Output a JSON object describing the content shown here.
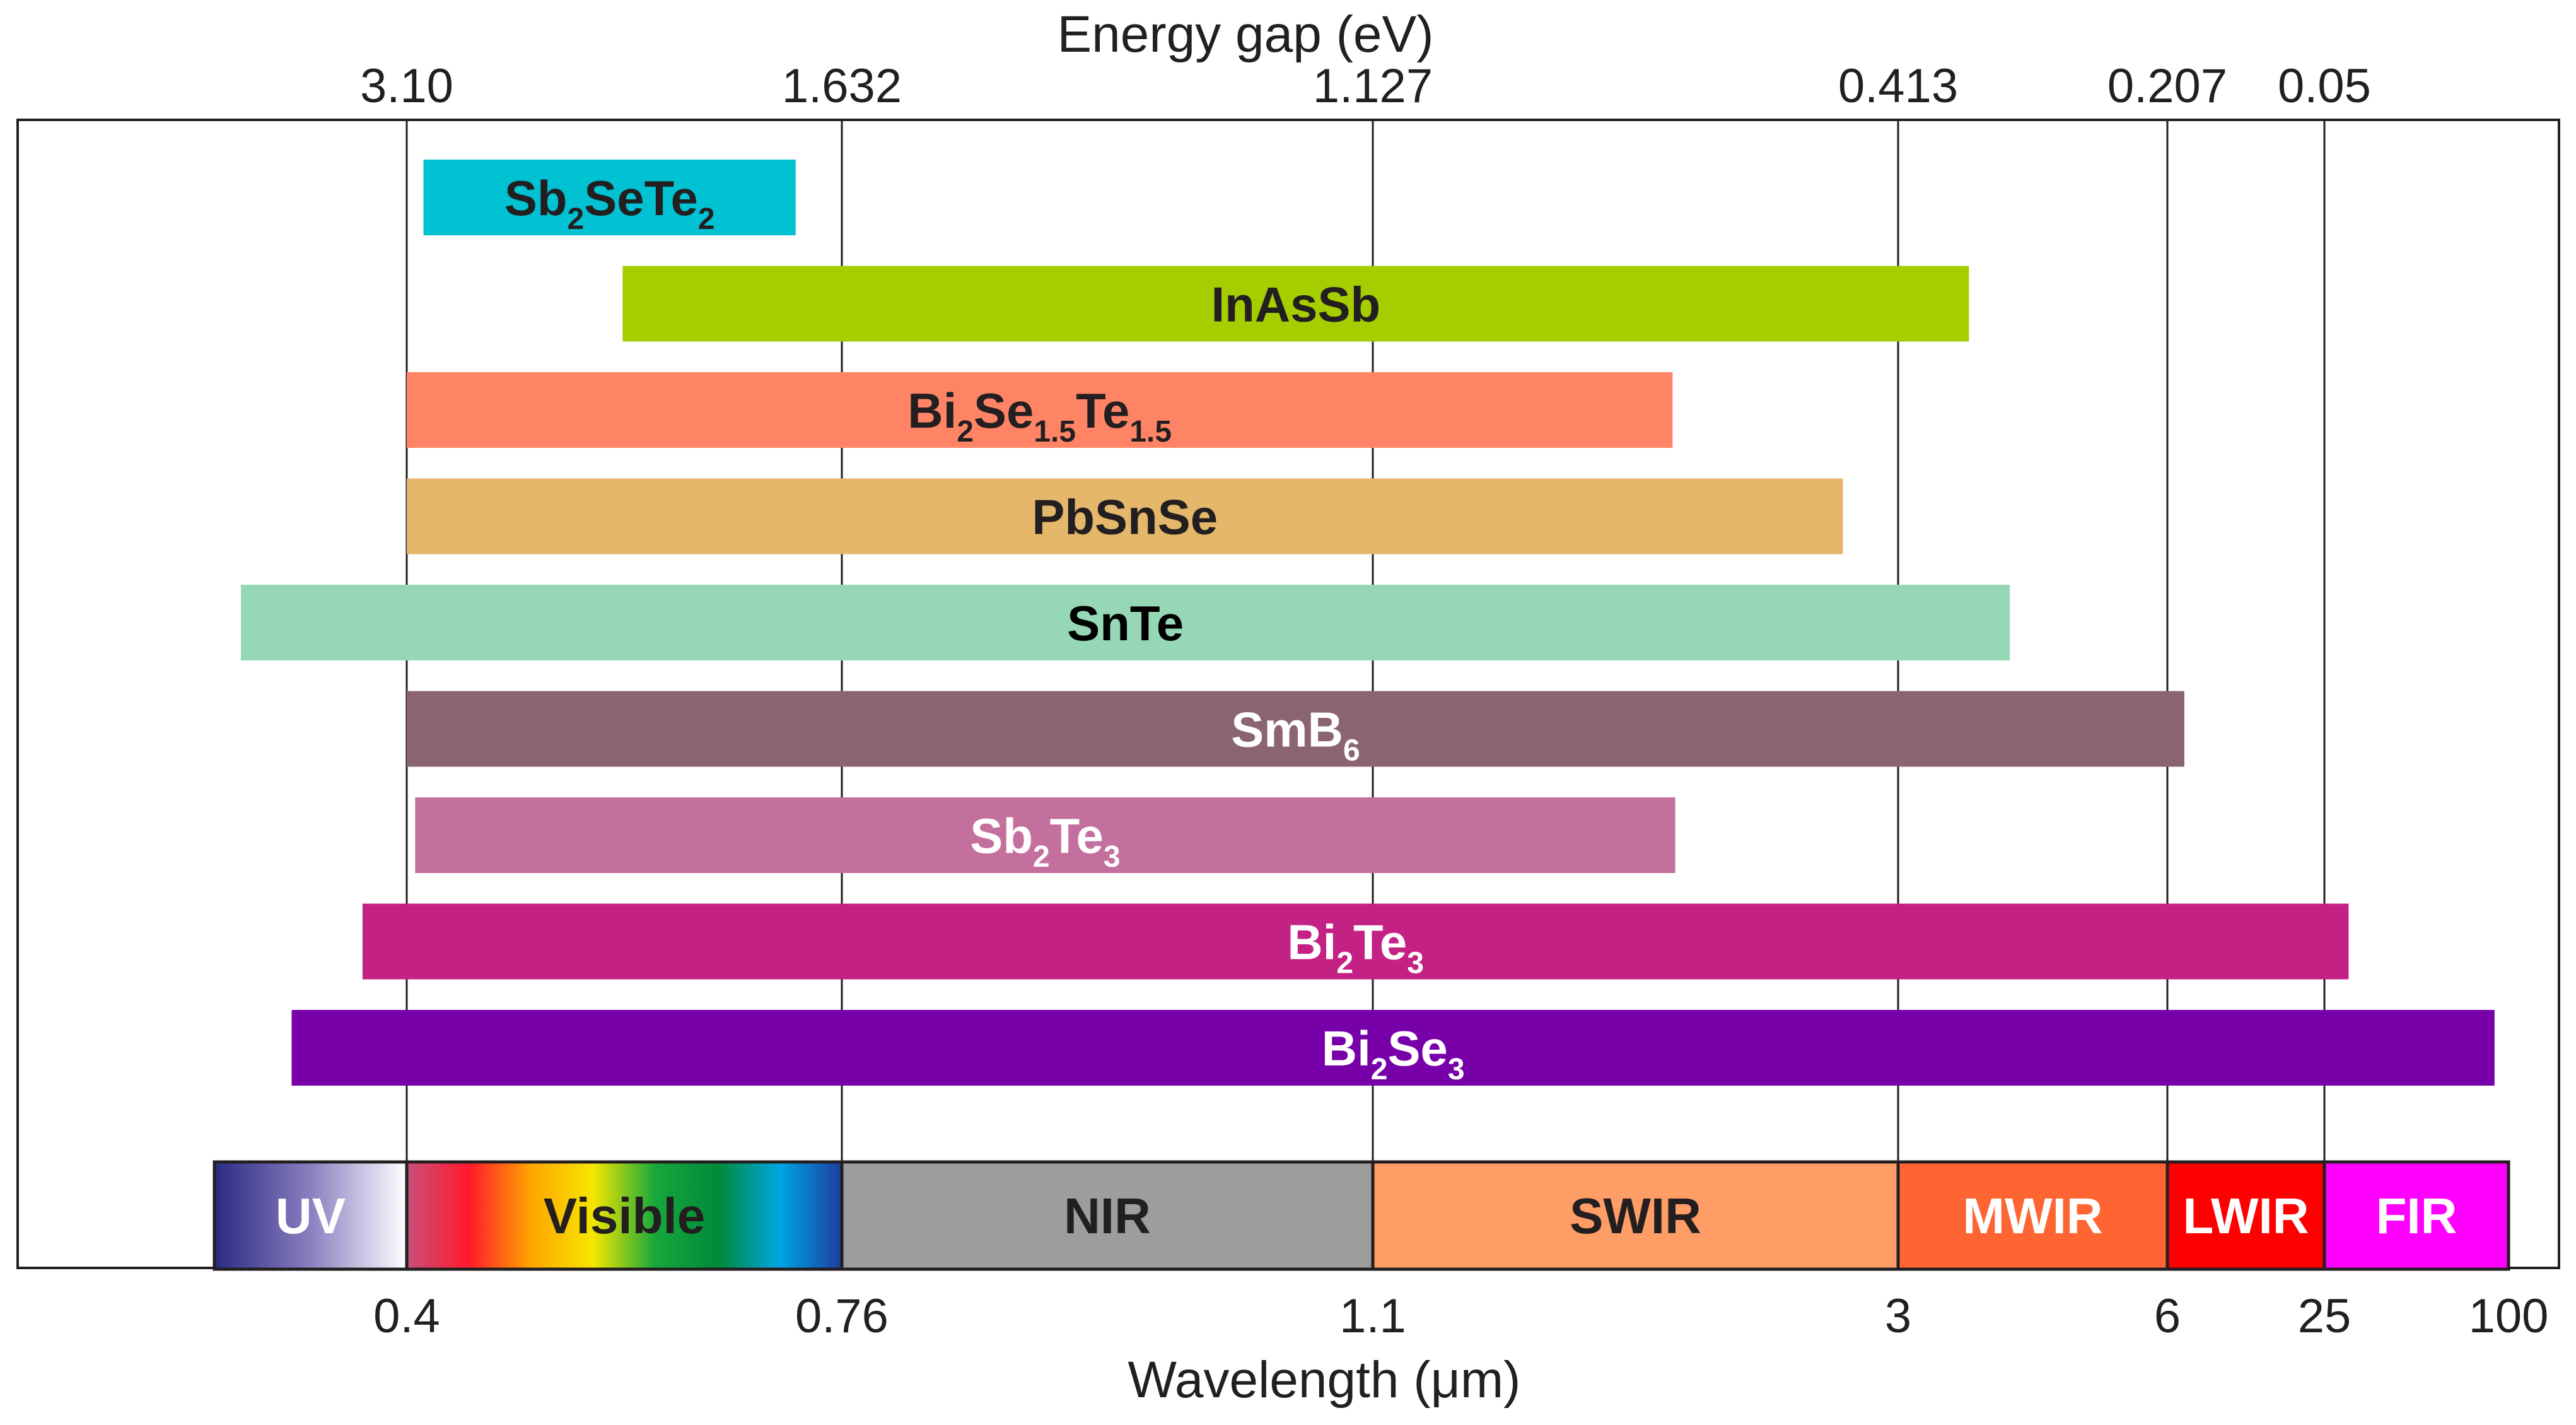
{
  "chart_data": {
    "type": "bar",
    "orientation": "horizontal-range",
    "top_axis": {
      "title": "Energy gap (eV)",
      "ticks": [
        {
          "label": "3.10",
          "wavelength": 0.4
        },
        {
          "label": "1.632",
          "wavelength": 0.76
        },
        {
          "label": "1.127",
          "wavelength": 1.1
        },
        {
          "label": "0.413",
          "wavelength": 3
        },
        {
          "label": "0.207",
          "wavelength": 6
        },
        {
          "label": "0.05",
          "wavelength": 25
        }
      ]
    },
    "bottom_axis": {
      "title": "Wavelength (μm)",
      "ticks": [
        {
          "label": "0.4",
          "wavelength": 0.4
        },
        {
          "label": "0.76",
          "wavelength": 0.76
        },
        {
          "label": "1.1",
          "wavelength": 1.1
        },
        {
          "label": "3",
          "wavelength": 3
        },
        {
          "label": "6",
          "wavelength": 6
        },
        {
          "label": "25",
          "wavelength": 25
        },
        {
          "label": "100",
          "wavelength": 100
        }
      ]
    },
    "gridlines_at": [
      0.4,
      0.76,
      1.1,
      3,
      6,
      25
    ],
    "materials": [
      {
        "name": "Sb2SeTe2",
        "parts": [
          [
            "Sb",
            ""
          ],
          [
            "2",
            "sub"
          ],
          [
            "SeTe",
            ""
          ],
          [
            "2",
            "sub"
          ]
        ],
        "start": 0.41,
        "end": 0.71,
        "color": "#00c2d3",
        "text_color": "#231f20"
      },
      {
        "name": "InAsSb",
        "parts": [
          [
            "InAsSb",
            ""
          ]
        ],
        "start": 0.55,
        "end": 3.6,
        "color": "#a5cd00",
        "text_color": "#231f20"
      },
      {
        "name": "Bi2Se1.5Te1.5",
        "parts": [
          [
            "Bi",
            ""
          ],
          [
            "2",
            "sub"
          ],
          [
            "Se",
            ""
          ],
          [
            "1.5",
            "sub"
          ],
          [
            "Te",
            ""
          ],
          [
            "1.5",
            "sub"
          ]
        ],
        "start": 0.4,
        "end": 1.95,
        "color": "#ff8465",
        "text_color": "#231f20"
      },
      {
        "name": "PbSnSe",
        "parts": [
          [
            "PbSnSe",
            ""
          ]
        ],
        "start": 0.4,
        "end": 2.7,
        "color": "#e4b76b",
        "text_color": "#231f20"
      },
      {
        "name": "SnTe",
        "parts": [
          [
            "SnTe",
            ""
          ]
        ],
        "start": 0.33,
        "end": 4.0,
        "color": "#96d8b5",
        "text_color": "#000000"
      },
      {
        "name": "SmB6",
        "parts": [
          [
            "SmB",
            ""
          ],
          [
            "6",
            "sub"
          ]
        ],
        "start": 0.4,
        "end": 7.0,
        "color": "#8b6473",
        "text_color": "#ffffff"
      },
      {
        "name": "Sb2Te3",
        "parts": [
          [
            "Sb",
            ""
          ],
          [
            "2",
            "sub"
          ],
          [
            "Te",
            ""
          ],
          [
            "3",
            "sub"
          ]
        ],
        "start": 0.405,
        "end": 1.96,
        "color": "#c4709e",
        "text_color": "#ffffff"
      },
      {
        "name": "Bi2Te3",
        "parts": [
          [
            "Bi",
            ""
          ],
          [
            "2",
            "sub"
          ],
          [
            "Te",
            ""
          ],
          [
            "3",
            "sub"
          ]
        ],
        "start": 0.38,
        "end": 30,
        "color": "#c42185",
        "text_color": "#ffffff"
      },
      {
        "name": "Bi2Se3",
        "parts": [
          [
            "Bi",
            ""
          ],
          [
            "2",
            "sub"
          ],
          [
            "Se",
            ""
          ],
          [
            "3",
            "sub"
          ]
        ],
        "start": 0.35,
        "end": 90,
        "color": "#7700a8",
        "text_color": "#ffffff"
      }
    ],
    "spectral_bands": [
      {
        "label": "UV",
        "start": 0.32,
        "end": 0.4,
        "gradient": [
          "#2a2b83",
          "#8b7fc0",
          "#ffffff"
        ],
        "text_color": "#ffffff"
      },
      {
        "label": "Visible",
        "start": 0.4,
        "end": 0.76,
        "gradient": [
          "#c8507a",
          "#ff1a2c",
          "#ffa400",
          "#f5e600",
          "#16a83c",
          "#008a3a",
          "#00a5e3",
          "#1b3e9e"
        ],
        "text_color": "#231f20"
      },
      {
        "label": "NIR",
        "start": 0.76,
        "end": 1.1,
        "color": "#9d9d9c",
        "text_color": "#231f20"
      },
      {
        "label": "SWIR",
        "start": 1.1,
        "end": 3,
        "color": "#ff9d66",
        "text_color": "#231f20"
      },
      {
        "label": "MWIR",
        "start": 3,
        "end": 6,
        "color": "#ff6533",
        "text_color": "#ffffff"
      },
      {
        "label": "LWIR",
        "start": 6,
        "end": 25,
        "color": "#ff0000",
        "text_color": "#ffffff"
      },
      {
        "label": "FIR",
        "start": 25,
        "end": 100,
        "color": "#ff00ff",
        "text_color": "#ffffff"
      }
    ]
  }
}
